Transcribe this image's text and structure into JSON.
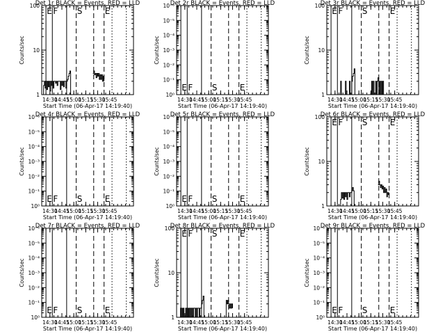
{
  "start_time_label": "Start Time (06-Apr-17 14:19:40)",
  "ylabel": "Counts/sec",
  "x_ticks": [
    "14:30",
    "14:45",
    "15:00",
    "15:15",
    "15:30",
    "15:45"
  ],
  "x_tick_minutes": [
    870,
    885,
    900,
    915,
    930,
    945
  ],
  "x_range_minutes": [
    859.67,
    975
  ],
  "event_lines": [
    {
      "label": "E",
      "minute": 865,
      "style": "solid"
    },
    {
      "label": "F",
      "minute": 873,
      "style": "solid"
    },
    {
      "label": "",
      "minute": 891,
      "style": "solid"
    },
    {
      "label": "S",
      "minute": 903,
      "style": "dashed"
    },
    {
      "label": "",
      "minute": 925,
      "style": "dashed"
    },
    {
      "label": "E",
      "minute": 938,
      "style": "dashed"
    },
    {
      "label": "",
      "minute": 948,
      "style": "dotted"
    },
    {
      "label": "",
      "minute": 966,
      "style": "dotted"
    }
  ],
  "chart_data": [
    {
      "type": "line",
      "title": "Det 1r BLACK = Events, RED = LLD",
      "scale": "log",
      "yrange": [
        1,
        100
      ],
      "y_ticks": [
        "1",
        "10",
        "100"
      ],
      "series": [
        {
          "values": [
            [
              860,
              1
            ],
            [
              862,
              1.6
            ],
            [
              863,
              2
            ],
            [
              864,
              1.4
            ],
            [
              865,
              2
            ],
            [
              866,
              1.3
            ],
            [
              867,
              2
            ],
            [
              868,
              1.5
            ],
            [
              869,
              2
            ],
            [
              870,
              1.2
            ],
            [
              871,
              2
            ],
            [
              872,
              1.6
            ],
            [
              873,
              2
            ],
            [
              874,
              1.4
            ],
            [
              875,
              2
            ],
            [
              876,
              2
            ],
            [
              877,
              1.8
            ],
            [
              878,
              2
            ],
            [
              879,
              1.6
            ],
            [
              880,
              2
            ],
            [
              881,
              2
            ],
            [
              882,
              2
            ],
            [
              883,
              1.3
            ],
            [
              884,
              2
            ],
            [
              885,
              1.6
            ],
            [
              886,
              2
            ],
            [
              887,
              1.5
            ],
            [
              888,
              2
            ],
            [
              889,
              2
            ],
            [
              890,
              1.4
            ],
            [
              891,
              2
            ],
            [
              892,
              2.2
            ],
            [
              893,
              2.6
            ],
            [
              894,
              3
            ],
            [
              895,
              3.4
            ],
            [
              896,
              1
            ],
            [
              924,
              3
            ],
            [
              925,
              3.4
            ],
            [
              926,
              2.8
            ],
            [
              927,
              3
            ],
            [
              928,
              2.4
            ],
            [
              929,
              3
            ],
            [
              930,
              2.6
            ],
            [
              931,
              3
            ],
            [
              932,
              2.2
            ],
            [
              933,
              2.8
            ],
            [
              934,
              2.2
            ],
            [
              935,
              2.8
            ],
            [
              936,
              2
            ],
            [
              937,
              2.6
            ],
            [
              938,
              2
            ]
          ]
        }
      ],
      "labels": [
        "E",
        "F",
        "S",
        "E"
      ]
    },
    {
      "type": "line",
      "title": "Det 2r BLACK = Events, RED = LLD",
      "scale": "log",
      "yrange": [
        1,
        1000000
      ],
      "y_ticks": [
        "10⁰",
        "10⁻¹",
        "10⁻²",
        "10⁻³",
        "10⁻⁴",
        "10⁻⁵",
        "10⁻⁶"
      ],
      "series": [],
      "labels": [
        "E",
        "F",
        "S",
        "E"
      ]
    },
    {
      "type": "line",
      "title": "Det 3r BLACK = Events, RED = LLD",
      "scale": "log",
      "yrange": [
        1,
        100
      ],
      "y_ticks": [
        "1",
        "10",
        "100"
      ],
      "series": [
        {
          "values": [
            [
              876,
              1
            ],
            [
              877,
              2
            ],
            [
              878,
              1
            ],
            [
              882,
              1
            ],
            [
              883,
              2
            ],
            [
              884,
              1
            ],
            [
              887,
              1
            ],
            [
              888,
              2
            ],
            [
              889,
              1
            ],
            [
              890,
              1
            ],
            [
              891,
              2
            ],
            [
              892,
              2.6
            ],
            [
              893,
              3
            ],
            [
              894,
              3.8
            ],
            [
              895,
              1
            ],
            [
              915,
              1
            ],
            [
              916,
              2
            ],
            [
              917,
              1
            ],
            [
              918,
              2
            ],
            [
              919,
              1
            ],
            [
              921,
              2
            ],
            [
              922,
              1
            ],
            [
              923,
              2
            ],
            [
              924,
              2.4
            ],
            [
              925,
              1
            ],
            [
              926,
              2
            ],
            [
              927,
              1
            ],
            [
              928,
              2
            ],
            [
              929,
              1
            ],
            [
              930,
              2
            ],
            [
              931,
              1
            ]
          ]
        }
      ],
      "labels": [
        "E",
        "F",
        "S",
        "E"
      ]
    },
    {
      "type": "line",
      "title": "Det 4r BLACK = Events, RED = LLD",
      "scale": "log",
      "yrange": [
        1,
        1000000
      ],
      "y_ticks": [
        "10⁰",
        "10⁻¹",
        "10⁻²",
        "10⁻³",
        "10⁻⁴",
        "10⁻⁵",
        "10⁻⁶"
      ],
      "series": [],
      "labels": [
        "E",
        "F",
        "S",
        "E"
      ]
    },
    {
      "type": "line",
      "title": "Det 5r BLACK = Events, RED = LLD",
      "scale": "log",
      "yrange": [
        1,
        1000000
      ],
      "y_ticks": [
        "10⁰",
        "10⁻¹",
        "10⁻²",
        "10⁻³",
        "10⁻⁴",
        "10⁻⁵",
        "10⁻⁶"
      ],
      "series": [],
      "labels": [
        "E",
        "F",
        "S",
        "E"
      ]
    },
    {
      "type": "line",
      "title": "Det 6r BLACK = Events, RED = LLD",
      "scale": "log",
      "yrange": [
        1,
        100
      ],
      "y_ticks": [
        "1",
        "10",
        "100"
      ],
      "series": [
        {
          "values": [
            [
              876,
              1
            ],
            [
              877,
              1.4
            ],
            [
              878,
              2
            ],
            [
              879,
              1.5
            ],
            [
              880,
              2
            ],
            [
              881,
              1.4
            ],
            [
              882,
              2
            ],
            [
              883,
              1.6
            ],
            [
              884,
              2
            ],
            [
              885,
              1.4
            ],
            [
              886,
              2
            ],
            [
              887,
              2
            ],
            [
              888,
              1.6
            ],
            [
              889,
              2
            ],
            [
              890,
              2
            ],
            [
              891,
              2.2
            ],
            [
              892,
              2.6
            ],
            [
              893,
              2.2
            ],
            [
              894,
              1
            ],
            [
              924,
              3
            ],
            [
              925,
              3.6
            ],
            [
              926,
              3
            ],
            [
              927,
              2.6
            ],
            [
              928,
              3
            ],
            [
              929,
              2.4
            ],
            [
              930,
              2.8
            ],
            [
              931,
              2
            ],
            [
              932,
              2.6
            ],
            [
              933,
              2
            ],
            [
              934,
              2.4
            ],
            [
              935,
              1.6
            ],
            [
              936,
              2
            ],
            [
              937,
              1.8
            ],
            [
              938,
              2
            ]
          ]
        }
      ],
      "labels": [
        "E",
        "F",
        "S",
        "E"
      ]
    },
    {
      "type": "line",
      "title": "Det 7r BLACK = Events, RED = LLD",
      "scale": "log",
      "yrange": [
        1,
        1000000
      ],
      "y_ticks": [
        "10⁰",
        "10⁻¹",
        "10⁻²",
        "10⁻³",
        "10⁻⁴",
        "10⁻⁵",
        "10⁻⁶"
      ],
      "series": [],
      "labels": [
        "E",
        "F",
        "S",
        "E"
      ]
    },
    {
      "type": "line",
      "title": "Det 8r BLACK = Events, RED = LLD",
      "scale": "log",
      "yrange": [
        1,
        100
      ],
      "y_ticks": [
        "1",
        "10",
        "100"
      ],
      "series": [
        {
          "values": [
            [
              864,
              1
            ],
            [
              864.5,
              1.6
            ],
            [
              865,
              1
            ],
            [
              866,
              1.6
            ],
            [
              867,
              1
            ],
            [
              868,
              1.6
            ],
            [
              869,
              1
            ],
            [
              871,
              1.6
            ],
            [
              872,
              1
            ],
            [
              873,
              1.6
            ],
            [
              874,
              1
            ],
            [
              875,
              1.6
            ],
            [
              876,
              1
            ],
            [
              877,
              1.6
            ],
            [
              878,
              1
            ],
            [
              879,
              1.6
            ],
            [
              880,
              1
            ],
            [
              881,
              1.6
            ],
            [
              882,
              1.6
            ],
            [
              883,
              1
            ],
            [
              884,
              1.6
            ],
            [
              885,
              1
            ],
            [
              886,
              1.6
            ],
            [
              887,
              1.6
            ],
            [
              888,
              1
            ],
            [
              889,
              1.6
            ],
            [
              890,
              1.6
            ],
            [
              891,
              2
            ],
            [
              892,
              2.4
            ],
            [
              893,
              3
            ],
            [
              894,
              1
            ],
            [
              921,
              1
            ],
            [
              922,
              2.4
            ],
            [
              923,
              2
            ],
            [
              924,
              2.4
            ],
            [
              925,
              2
            ],
            [
              926,
              1.6
            ],
            [
              927,
              2
            ],
            [
              928,
              1.6
            ],
            [
              929,
              2
            ],
            [
              930,
              1.6
            ]
          ]
        }
      ],
      "labels": [
        "E",
        "F",
        "S",
        "E"
      ]
    },
    {
      "type": "line",
      "title": "Det 9r BLACK = Events, RED = LLD",
      "scale": "log",
      "yrange": [
        1,
        1000000
      ],
      "y_ticks": [
        "10⁰",
        "10⁻¹",
        "10⁻²",
        "10⁻³",
        "10⁻⁴",
        "10⁻⁵",
        "10⁻⁶"
      ],
      "series": [],
      "labels": [
        "E",
        "F",
        "S",
        "E"
      ]
    }
  ]
}
